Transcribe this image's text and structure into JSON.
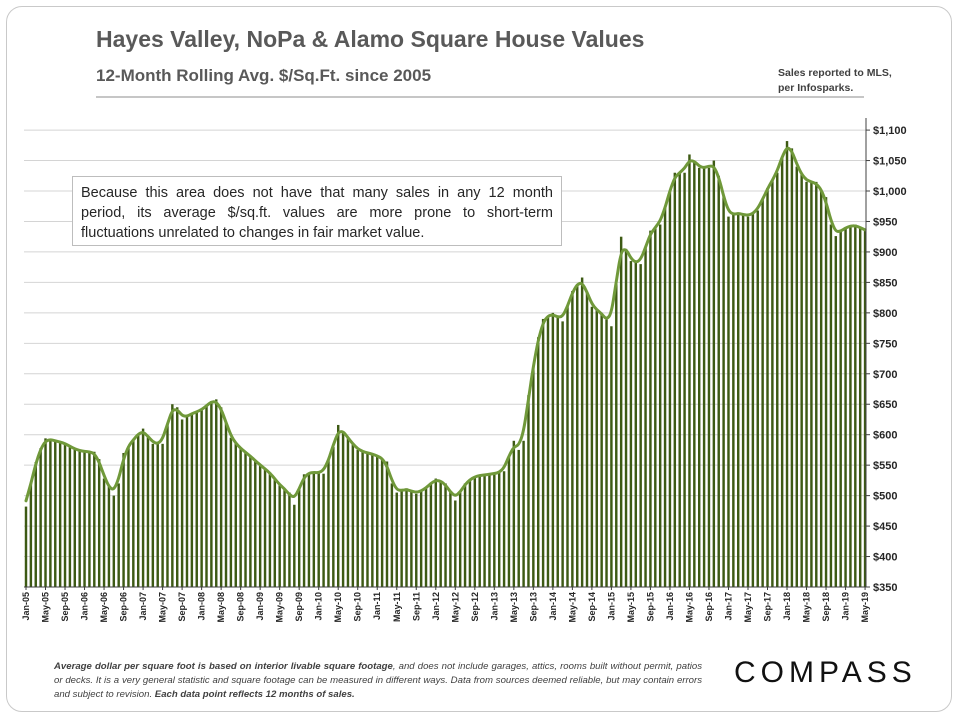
{
  "header": {
    "title": "Hayes Valley, NoPa & Alamo Square House Values",
    "subtitle": "12-Month Rolling Avg. $/Sq.Ft. since 2005",
    "source_line1": "Sales reported to MLS,",
    "source_line2": "per Infosparks."
  },
  "annotation": {
    "text": "Because this area does not have that many sales in any 12 month period, its average $/sq.ft. values are more prone to short-term fluctuations unrelated to changes in fair market value."
  },
  "footer": {
    "note_part1": "Average dollar per square foot is based on interior livable square footage",
    "note_part2": ", and does not include garages, attics, rooms built without permit, patios or decks. It is a very general statistic and square footage can be measured in different ways. Data from sources deemed reliable, but may contain errors and subject to revision. ",
    "note_part3": "Each data point reflects 12 months of sales.",
    "logo": "COMPASS"
  },
  "colors": {
    "bar": "#3d5a14",
    "line": "#70993a",
    "grid": "#d4d4d4"
  },
  "chart_data": {
    "type": "bar",
    "overlay": "line",
    "x_start": "Jan-05",
    "x_end": "May-19",
    "xtick_labels": [
      "Jan-05",
      "May-05",
      "Sep-05",
      "Jan-06",
      "May-06",
      "Sep-06",
      "Jan-07",
      "May-07",
      "Sep-07",
      "Jan-08",
      "May-08",
      "Sep-08",
      "Jan-09",
      "May-09",
      "Sep-09",
      "Jan-10",
      "May-10",
      "Sep-10",
      "Jan-11",
      "May-11",
      "Sep-11",
      "Jan-12",
      "May-12",
      "Sep-12",
      "Jan-13",
      "May-13",
      "Sep-13",
      "Jan-14",
      "May-14",
      "Sep-14",
      "Jan-15",
      "May-15",
      "Sep-15",
      "Jan-16",
      "May-16",
      "Sep-16",
      "Jan-17",
      "May-17",
      "Sep-17",
      "Jan-18",
      "May-18",
      "Sep-18",
      "Jan-19",
      "May-19"
    ],
    "ytick_labels": [
      "$350",
      "$400",
      "$450",
      "$500",
      "$550",
      "$600",
      "$650",
      "$700",
      "$750",
      "$800",
      "$850",
      "$900",
      "$950",
      "$1,000",
      "$1,050",
      "$1,100"
    ],
    "ylim": [
      350,
      1110
    ],
    "y_axis_position": "right",
    "grid": true,
    "legend": "none",
    "anchors": [
      {
        "x": "Jan-05",
        "y": 482
      },
      {
        "x": "Feb-05",
        "y": 520
      },
      {
        "x": "Mar-05",
        "y": 555
      },
      {
        "x": "Apr-05",
        "y": 578
      },
      {
        "x": "May-05",
        "y": 594
      },
      {
        "x": "Jul-05",
        "y": 590
      },
      {
        "x": "Sep-05",
        "y": 586
      },
      {
        "x": "Nov-05",
        "y": 576
      },
      {
        "x": "Jan-06",
        "y": 572
      },
      {
        "x": "Mar-06",
        "y": 572
      },
      {
        "x": "Apr-06",
        "y": 560
      },
      {
        "x": "May-06",
        "y": 528
      },
      {
        "x": "Jun-06",
        "y": 515
      },
      {
        "x": "Jul-06",
        "y": 500
      },
      {
        "x": "Aug-06",
        "y": 520
      },
      {
        "x": "Sep-06",
        "y": 570
      },
      {
        "x": "Nov-06",
        "y": 592
      },
      {
        "x": "Jan-07",
        "y": 610
      },
      {
        "x": "Mar-07",
        "y": 585
      },
      {
        "x": "May-07",
        "y": 585
      },
      {
        "x": "Jul-07",
        "y": 650
      },
      {
        "x": "Aug-07",
        "y": 645
      },
      {
        "x": "Sep-07",
        "y": 625
      },
      {
        "x": "Nov-07",
        "y": 635
      },
      {
        "x": "Jan-08",
        "y": 640
      },
      {
        "x": "Mar-08",
        "y": 655
      },
      {
        "x": "Apr-08",
        "y": 658
      },
      {
        "x": "May-08",
        "y": 645
      },
      {
        "x": "Jul-08",
        "y": 595
      },
      {
        "x": "Sep-08",
        "y": 577
      },
      {
        "x": "Nov-08",
        "y": 565
      },
      {
        "x": "Jan-09",
        "y": 550
      },
      {
        "x": "Mar-09",
        "y": 538
      },
      {
        "x": "May-09",
        "y": 517
      },
      {
        "x": "Jul-09",
        "y": 505
      },
      {
        "x": "Aug-09",
        "y": 485
      },
      {
        "x": "Sep-09",
        "y": 512
      },
      {
        "x": "Oct-09",
        "y": 535
      },
      {
        "x": "Dec-09",
        "y": 539
      },
      {
        "x": "Feb-10",
        "y": 536
      },
      {
        "x": "Apr-10",
        "y": 580
      },
      {
        "x": "May-10",
        "y": 616
      },
      {
        "x": "Jul-10",
        "y": 595
      },
      {
        "x": "Sep-10",
        "y": 575
      },
      {
        "x": "Nov-10",
        "y": 570
      },
      {
        "x": "Jan-11",
        "y": 566
      },
      {
        "x": "Mar-11",
        "y": 556
      },
      {
        "x": "Apr-11",
        "y": 520
      },
      {
        "x": "May-11",
        "y": 505
      },
      {
        "x": "Jul-11",
        "y": 512
      },
      {
        "x": "Sep-11",
        "y": 503
      },
      {
        "x": "Nov-11",
        "y": 512
      },
      {
        "x": "Jan-12",
        "y": 528
      },
      {
        "x": "Mar-12",
        "y": 520
      },
      {
        "x": "May-12",
        "y": 492
      },
      {
        "x": "Jul-12",
        "y": 520
      },
      {
        "x": "Sep-12",
        "y": 532
      },
      {
        "x": "Nov-12",
        "y": 534
      },
      {
        "x": "Jan-13",
        "y": 536
      },
      {
        "x": "Mar-13",
        "y": 540
      },
      {
        "x": "May-13",
        "y": 590
      },
      {
        "x": "Jun-13",
        "y": 575
      },
      {
        "x": "Jul-13",
        "y": 590
      },
      {
        "x": "Aug-13",
        "y": 665
      },
      {
        "x": "Sep-13",
        "y": 712
      },
      {
        "x": "Oct-13",
        "y": 760
      },
      {
        "x": "Nov-13",
        "y": 790
      },
      {
        "x": "Jan-14",
        "y": 800
      },
      {
        "x": "Mar-14",
        "y": 786
      },
      {
        "x": "May-14",
        "y": 836
      },
      {
        "x": "Jul-14",
        "y": 858
      },
      {
        "x": "Sep-14",
        "y": 810
      },
      {
        "x": "Nov-14",
        "y": 800
      },
      {
        "x": "Jan-15",
        "y": 778
      },
      {
        "x": "Mar-15",
        "y": 925
      },
      {
        "x": "May-15",
        "y": 885
      },
      {
        "x": "Jul-15",
        "y": 880
      },
      {
        "x": "Sep-15",
        "y": 935
      },
      {
        "x": "Nov-15",
        "y": 945
      },
      {
        "x": "Jan-16",
        "y": 1000
      },
      {
        "x": "Feb-16",
        "y": 1030
      },
      {
        "x": "Apr-16",
        "y": 1030
      },
      {
        "x": "May-16",
        "y": 1060
      },
      {
        "x": "Jul-16",
        "y": 1038
      },
      {
        "x": "Sep-16",
        "y": 1038
      },
      {
        "x": "Oct-16",
        "y": 1050
      },
      {
        "x": "Nov-16",
        "y": 1025
      },
      {
        "x": "Jan-17",
        "y": 958
      },
      {
        "x": "Mar-17",
        "y": 965
      },
      {
        "x": "May-17",
        "y": 958
      },
      {
        "x": "Jul-17",
        "y": 968
      },
      {
        "x": "Sep-17",
        "y": 1005
      },
      {
        "x": "Nov-17",
        "y": 1030
      },
      {
        "x": "Jan-18",
        "y": 1082
      },
      {
        "x": "Feb-18",
        "y": 1070
      },
      {
        "x": "Mar-18",
        "y": 1040
      },
      {
        "x": "May-18",
        "y": 1015
      },
      {
        "x": "Jul-18",
        "y": 1015
      },
      {
        "x": "Sep-18",
        "y": 990
      },
      {
        "x": "Oct-18",
        "y": 945
      },
      {
        "x": "Nov-18",
        "y": 926
      },
      {
        "x": "Dec-18",
        "y": 935
      },
      {
        "x": "Jan-19",
        "y": 940
      },
      {
        "x": "Mar-19",
        "y": 945
      },
      {
        "x": "May-19",
        "y": 935
      }
    ]
  }
}
